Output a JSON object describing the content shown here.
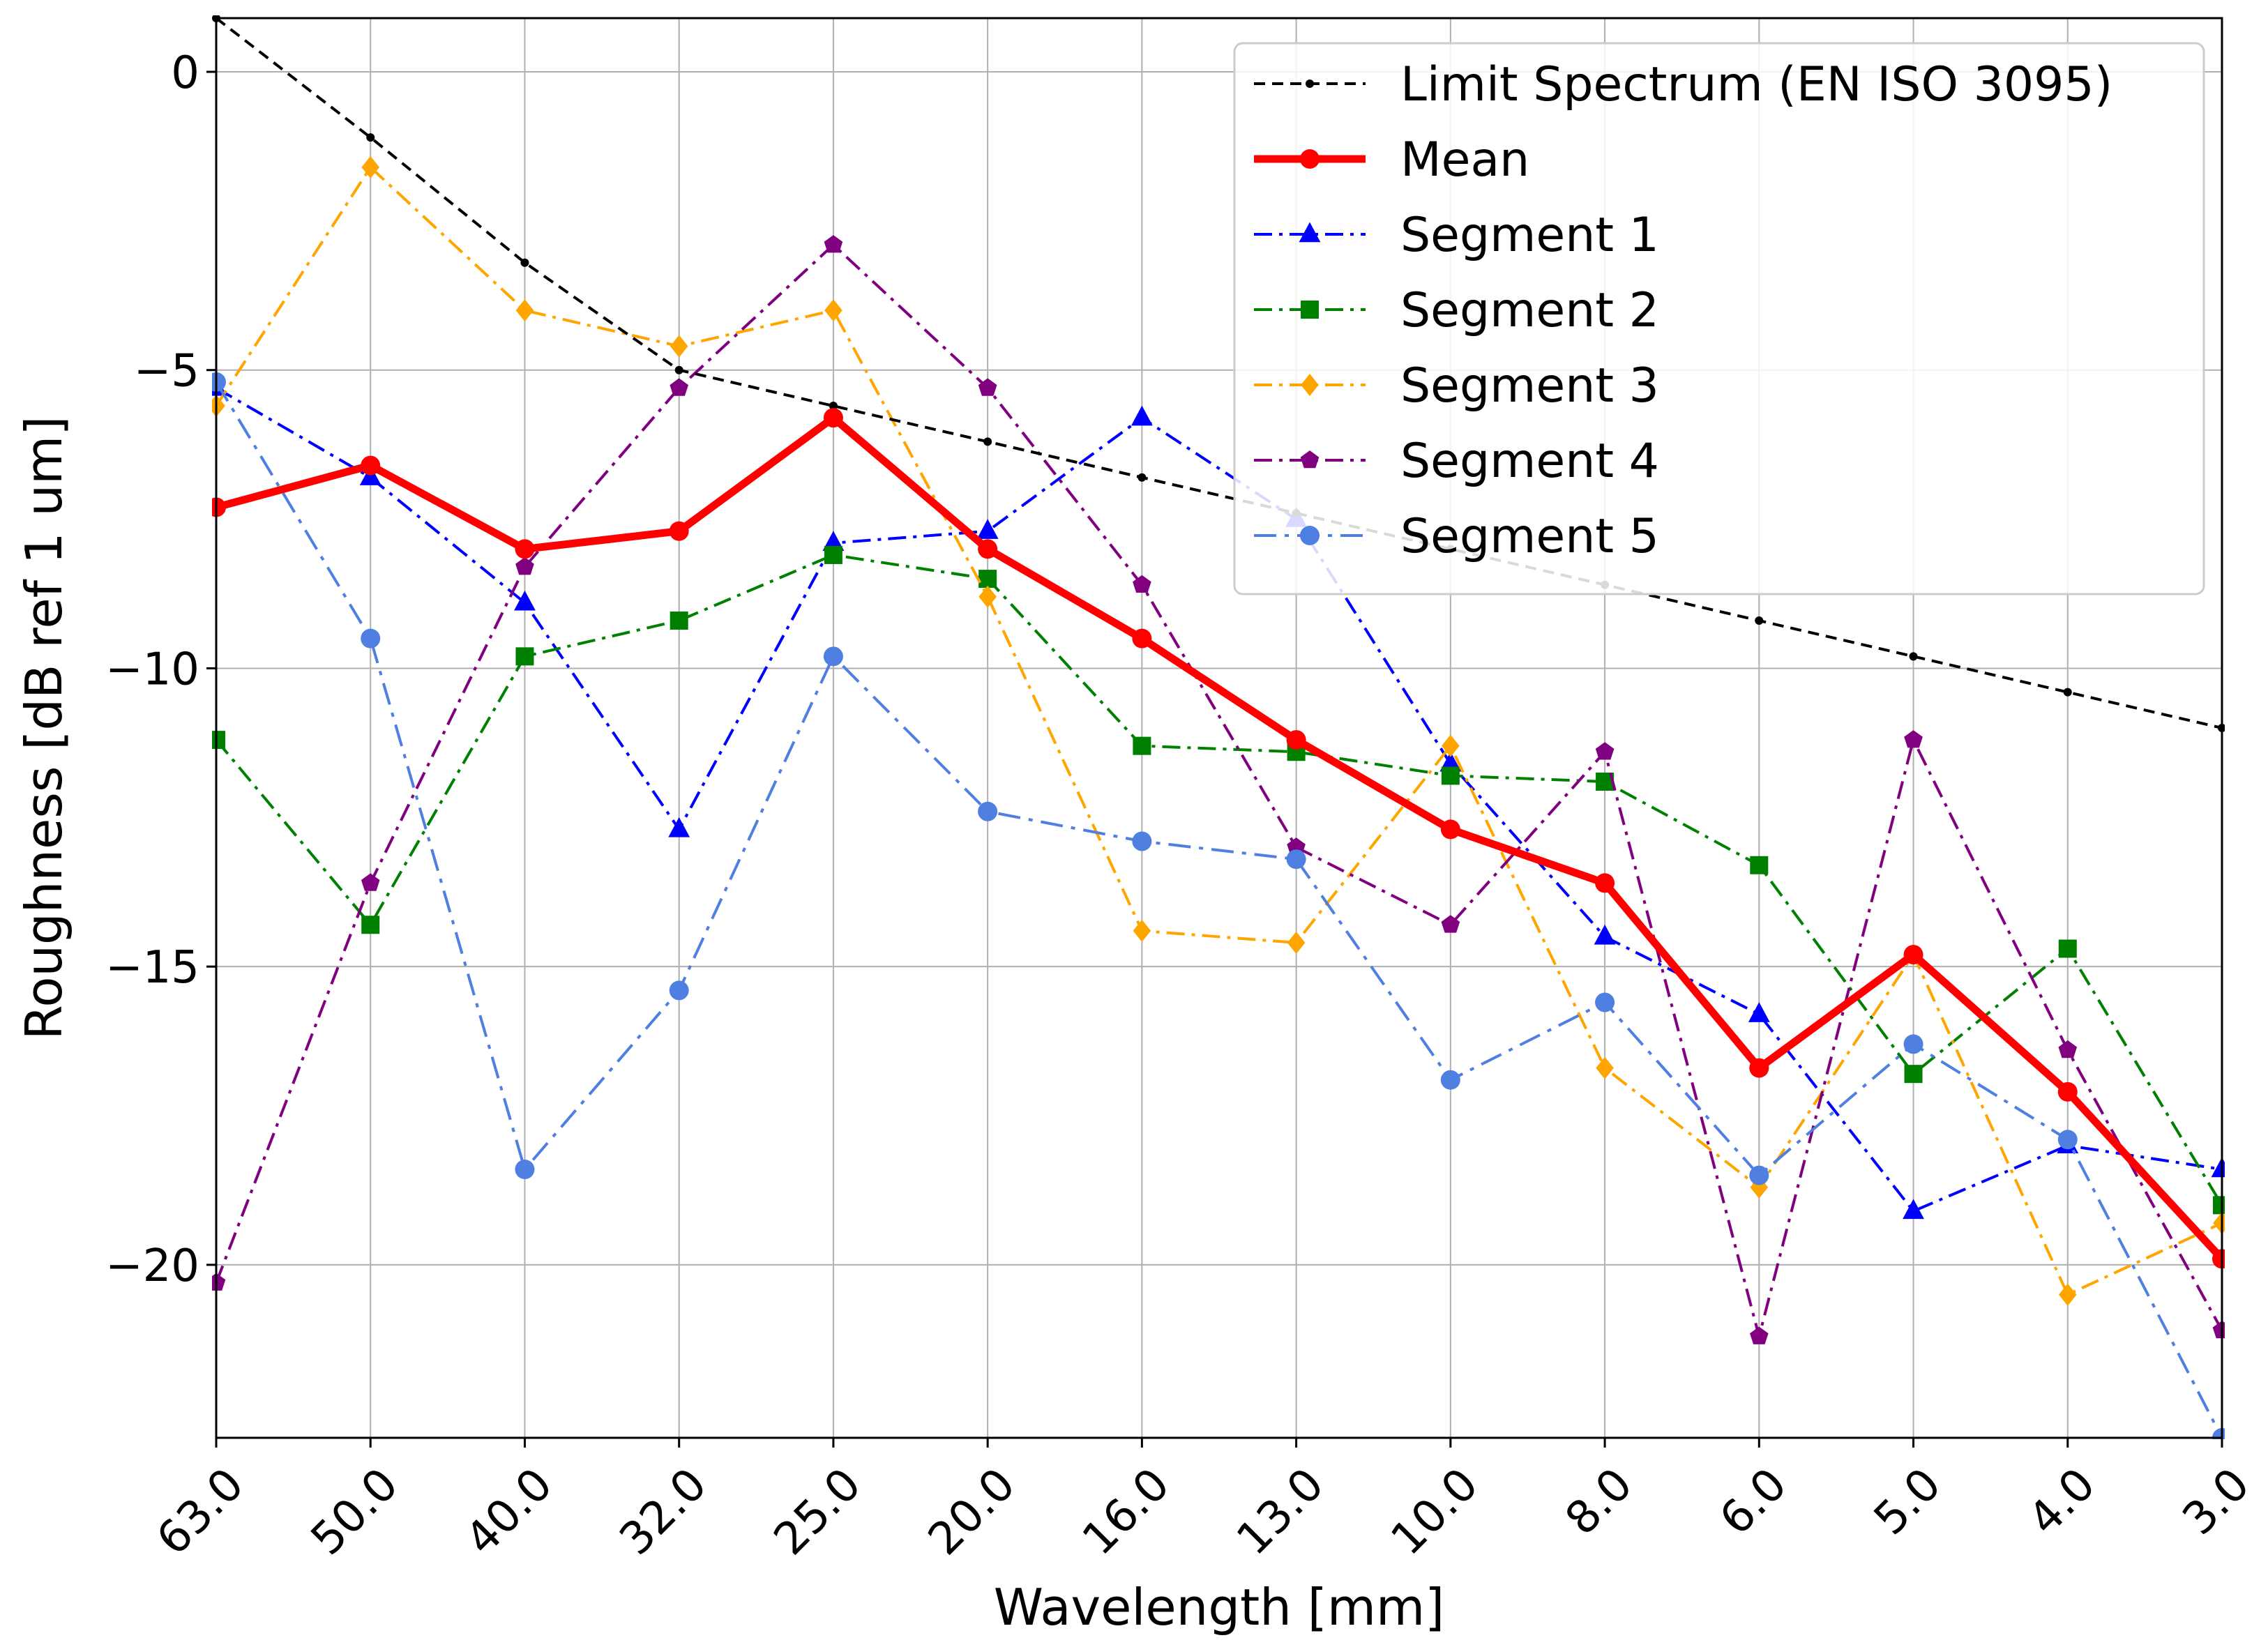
{
  "chart_data": {
    "type": "line",
    "title": "",
    "xlabel": "Wavelength [mm]",
    "ylabel": "Roughness [dB ref 1 um]",
    "categories": [
      "63.0",
      "50.0",
      "40.0",
      "32.0",
      "25.0",
      "20.0",
      "16.0",
      "13.0",
      "10.0",
      "8.0",
      "6.0",
      "5.0",
      "4.0",
      "3.0"
    ],
    "ylim": [
      -22.9,
      0.9
    ],
    "yticks": [
      0,
      -5,
      -10,
      -15,
      -20
    ],
    "ytick_labels": [
      "0",
      "−5",
      "−10",
      "−15",
      "−20"
    ],
    "grid": true,
    "legend_position": "top-right",
    "series": [
      {
        "name": "Limit Spectrum (EN ISO 3095)",
        "color": "#000000",
        "style": "dashed-thin",
        "marker": "dot",
        "values": [
          0.9,
          -1.1,
          -3.2,
          -5.0,
          -5.6,
          -6.2,
          -6.8,
          -7.4,
          -8.0,
          -8.6,
          -9.2,
          -9.8,
          -10.4,
          -11.0
        ]
      },
      {
        "name": "Mean",
        "color": "#ff0000",
        "style": "solid-thick",
        "marker": "circle",
        "values": [
          -7.3,
          -6.6,
          -8.0,
          -7.7,
          -5.8,
          -8.0,
          -9.5,
          -11.2,
          -12.7,
          -13.6,
          -16.7,
          -14.8,
          -17.1,
          -19.9
        ]
      },
      {
        "name": "Segment 1",
        "color": "#0000ff",
        "style": "dashdot",
        "marker": "triangle",
        "values": [
          -5.3,
          -6.8,
          -8.9,
          -12.7,
          -7.9,
          -7.7,
          -5.8,
          -7.5,
          -11.6,
          -14.5,
          -15.8,
          -19.1,
          -18.0,
          -18.4
        ]
      },
      {
        "name": "Segment 2",
        "color": "#008000",
        "style": "dashdot",
        "marker": "square",
        "values": [
          -11.2,
          -14.3,
          -9.8,
          -9.2,
          -8.1,
          -8.5,
          -11.3,
          -11.4,
          -11.8,
          -11.9,
          -13.3,
          -16.8,
          -14.7,
          -19.0
        ]
      },
      {
        "name": "Segment 3",
        "color": "#ffa500",
        "style": "dashdot",
        "marker": "diamond",
        "values": [
          -5.6,
          -1.6,
          -4.0,
          -4.6,
          -4.0,
          -8.8,
          -14.4,
          -14.6,
          -11.3,
          -16.7,
          -18.7,
          -14.8,
          -20.5,
          -19.3
        ]
      },
      {
        "name": "Segment 4",
        "color": "#800080",
        "style": "dashdot",
        "marker": "pentagon",
        "values": [
          -20.3,
          -13.6,
          -8.3,
          -5.3,
          -2.9,
          -5.3,
          -8.6,
          -13.0,
          -14.3,
          -11.4,
          -21.2,
          -11.2,
          -16.4,
          -21.1
        ]
      },
      {
        "name": "Segment 5",
        "color": "#4f7fe0",
        "style": "dashdot-long",
        "marker": "circle",
        "values": [
          -5.2,
          -9.5,
          -18.4,
          -15.4,
          -9.8,
          -12.4,
          -12.9,
          -13.2,
          -16.9,
          -15.6,
          -18.5,
          -16.3,
          -17.9,
          -22.9
        ]
      }
    ]
  }
}
